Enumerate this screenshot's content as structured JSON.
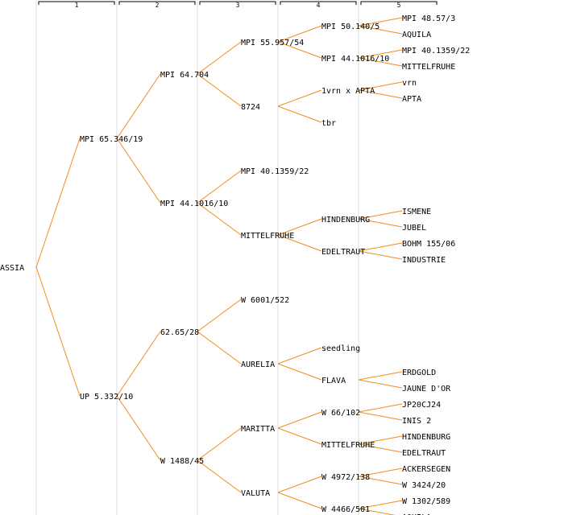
{
  "colors": {
    "edge": "#f28c1e",
    "text": "#000000",
    "column_line": "#eeeeee"
  },
  "generations": [
    "1",
    "2",
    "3",
    "4",
    "5"
  ],
  "root": {
    "name": "ASSIA",
    "children": [
      {
        "name": "MPI 65.346/19",
        "children": [
          {
            "name": "MPI 64.704",
            "children": [
              {
                "name": "MPI 55.957/54",
                "children": [
                  {
                    "name": "MPI 50.140/5",
                    "children": [
                      {
                        "name": "MPI 48.57/3"
                      },
                      {
                        "name": "AQUILA"
                      }
                    ]
                  },
                  {
                    "name": "MPI 44.1016/10",
                    "children": [
                      {
                        "name": "MPI 40.1359/22"
                      },
                      {
                        "name": "MITTELFRUHE"
                      }
                    ]
                  }
                ]
              },
              {
                "name": "8724",
                "children": [
                  {
                    "name": "1vrn x APTA",
                    "children": [
                      {
                        "name": "vrn"
                      },
                      {
                        "name": "APTA"
                      }
                    ]
                  },
                  {
                    "name": "tbr"
                  }
                ]
              }
            ]
          },
          {
            "name": "MPI 44.1016/10",
            "children": [
              {
                "name": "MPI 40.1359/22"
              },
              {
                "name": "MITTELFRUHE",
                "children": [
                  {
                    "name": "HINDENBURG",
                    "children": [
                      {
                        "name": "ISMENE"
                      },
                      {
                        "name": "JUBEL"
                      }
                    ]
                  },
                  {
                    "name": "EDELTRAUT",
                    "children": [
                      {
                        "name": "BOHM 155/06"
                      },
                      {
                        "name": "INDUSTRIE"
                      }
                    ]
                  }
                ]
              }
            ]
          }
        ]
      },
      {
        "name": "UP 5.332/10",
        "children": [
          {
            "name": "62.65/28",
            "children": [
              {
                "name": "W 6001/522"
              },
              {
                "name": "AURELIA",
                "children": [
                  {
                    "name": "seedling"
                  },
                  {
                    "name": "FLAVA",
                    "children": [
                      {
                        "name": "ERDGOLD"
                      },
                      {
                        "name": "JAUNE D'OR"
                      }
                    ]
                  }
                ]
              }
            ]
          },
          {
            "name": "W 1488/45",
            "children": [
              {
                "name": "MARITTA",
                "children": [
                  {
                    "name": "W 66/102",
                    "children": [
                      {
                        "name": "JP20CJ24"
                      },
                      {
                        "name": "INIS 2"
                      }
                    ]
                  },
                  {
                    "name": "MITTELFRUHE",
                    "children": [
                      {
                        "name": "HINDENBURG"
                      },
                      {
                        "name": "EDELTRAUT"
                      }
                    ]
                  }
                ]
              },
              {
                "name": "VALUTA",
                "children": [
                  {
                    "name": "W 4972/138",
                    "children": [
                      {
                        "name": "ACKERSEGEN"
                      },
                      {
                        "name": "W 3424/20"
                      }
                    ]
                  },
                  {
                    "name": "W 4466/501",
                    "children": [
                      {
                        "name": "W 1302/589"
                      },
                      {
                        "name": "AQUILA"
                      }
                    ]
                  }
                ]
              }
            ]
          }
        ]
      }
    ]
  }
}
